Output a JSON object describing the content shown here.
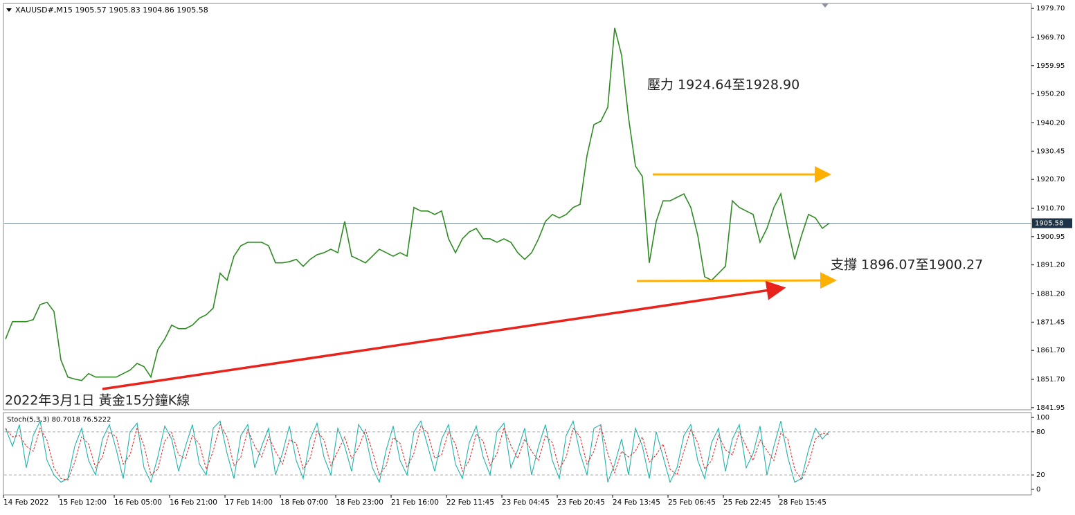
{
  "chart_data": [
    {
      "type": "line",
      "title": "XAUUSD#,M15  1905.57 1905.83 1904.86 1905.58",
      "annotations": [
        "壓力 1924.64至1928.90",
        "支撐 1896.07至1900.27",
        "2022年3月1日 黃金15分鐘K線"
      ],
      "categories": [
        "14 Feb 2022",
        null,
        null,
        null,
        null,
        null,
        null,
        null,
        "15 Feb 12:00",
        null,
        null,
        null,
        null,
        null,
        null,
        null,
        "16 Feb 05:00",
        null,
        null,
        null,
        null,
        null,
        null,
        null,
        "16 Feb 21:00",
        null,
        null,
        null,
        null,
        null,
        null,
        null,
        "17 Feb 14:00",
        null,
        null,
        null,
        null,
        null,
        null,
        null,
        "18 Feb 07:00",
        null,
        null,
        null,
        null,
        null,
        null,
        null,
        "18 Feb 23:00",
        null,
        null,
        null,
        null,
        null,
        null,
        null,
        "21 Feb 16:00",
        null,
        null,
        null,
        null,
        null,
        null,
        null,
        "22 Feb 11:45",
        null,
        null,
        null,
        null,
        null,
        null,
        null,
        "23 Feb 04:45",
        null,
        null,
        null,
        null,
        null,
        null,
        null,
        "23 Feb 20:45",
        null,
        null,
        null,
        null,
        null,
        null,
        null,
        "24 Feb 13:45",
        null,
        null,
        null,
        null,
        null,
        null,
        null,
        "25 Feb 06:45",
        null,
        null,
        null,
        null,
        null,
        null,
        null,
        "25 Feb 22:45",
        null,
        null,
        null,
        null,
        null,
        null,
        null,
        "28 Feb 15:45",
        null,
        null,
        null,
        null,
        null,
        null,
        null
      ],
      "series": [
        {
          "color": "#2e8b22",
          "values": [
            1865.6,
            1871.6,
            1871.6,
            1871.6,
            1872.3,
            1877.5,
            1878.3,
            1875.1,
            1858.4,
            1852.5,
            1851.8,
            1851.3,
            1853.7,
            1852.5,
            1852.5,
            1852.5,
            1852.5,
            1853.7,
            1854.9,
            1857.2,
            1856.1,
            1852.5,
            1862.0,
            1865.6,
            1870.4,
            1869.2,
            1869.2,
            1870.4,
            1872.8,
            1874.0,
            1876.3,
            1888.3,
            1885.9,
            1894.2,
            1897.8,
            1899.0,
            1899.0,
            1899.0,
            1897.8,
            1891.9,
            1891.9,
            1892.3,
            1893.1,
            1890.7,
            1893.1,
            1894.7,
            1895.4,
            1896.6,
            1895.4,
            1906.2,
            1894.2,
            1893.1,
            1891.9,
            1894.2,
            1896.6,
            1895.4,
            1894.2,
            1895.4,
            1894.2,
            1911.0,
            1909.8,
            1909.8,
            1908.6,
            1909.8,
            1900.2,
            1895.4,
            1900.2,
            1902.6,
            1903.8,
            1900.2,
            1900.2,
            1899.0,
            1900.2,
            1899.0,
            1895.4,
            1893.1,
            1895.4,
            1900.2,
            1906.2,
            1908.6,
            1907.4,
            1908.6,
            1911.0,
            1912.1,
            1928.9,
            1939.6,
            1940.8,
            1945.6,
            1973.0,
            1963.5,
            1942.0,
            1925.3,
            1921.7,
            1891.9,
            1906.2,
            1913.3,
            1913.3,
            1914.5,
            1915.7,
            1911.0,
            1901.4,
            1887.1,
            1885.9,
            1888.3,
            1890.7,
            1913.3,
            1911.0,
            1909.8,
            1908.6,
            1899.0,
            1903.8,
            1911.0,
            1915.7,
            1903.8,
            1893.1,
            1901.4,
            1908.6,
            1907.4,
            1903.8,
            1905.6
          ]
        }
      ],
      "last_price": 1905.58,
      "ylim": [
        1841.2,
        1981.4
      ],
      "yticks": [
        {
          "value": 1979.7,
          "label": "1979.70"
        },
        {
          "value": 1969.7,
          "label": "1969.70"
        },
        1959.95,
        {
          "value": 1950.2,
          "label": "1950.20"
        },
        {
          "value": 1940.2,
          "label": "1940.20"
        },
        1930.45,
        {
          "value": 1920.7,
          "label": "1920.70"
        },
        {
          "value": 1910.7,
          "label": "1910.70"
        },
        1900.95,
        {
          "value": 1891.2,
          "label": "1891.20"
        },
        {
          "value": 1881.2,
          "label": "1881.20"
        },
        1871.45,
        {
          "value": 1861.7,
          "label": "1861.70"
        },
        {
          "value": 1851.7,
          "label": "1851.70"
        },
        1841.95
      ]
    },
    {
      "type": "line",
      "title": "Stoch(5,3,3) 80.7018 76.5222",
      "series": [
        {
          "color": "#20b2aa",
          "dashed": false,
          "values": [
            85,
            60,
            90,
            30,
            75,
            95,
            40,
            20,
            10,
            15,
            60,
            85,
            40,
            20,
            70,
            90,
            55,
            15,
            80,
            92,
            30,
            10,
            45,
            88,
            70,
            25,
            60,
            90,
            35,
            20,
            85,
            95,
            50,
            15,
            75,
            90,
            30,
            60,
            85,
            20,
            50,
            88,
            40,
            15,
            70,
            92,
            45,
            20,
            85,
            60,
            25,
            90,
            75,
            30,
            10,
            55,
            88,
            40,
            20,
            80,
            95,
            60,
            25,
            70,
            90,
            35,
            15,
            65,
            88,
            45,
            20,
            80,
            92,
            30,
            55,
            85,
            20,
            60,
            90,
            40,
            15,
            75,
            95,
            50,
            20,
            85,
            90,
            10,
            35,
            70,
            20,
            85,
            60,
            15,
            80,
            45,
            10,
            30,
            75,
            90,
            40,
            15,
            65,
            85,
            25,
            70,
            90,
            30,
            50,
            88,
            20,
            60,
            95,
            45,
            10,
            15,
            55,
            85,
            70,
            80.7
          ]
        },
        {
          "color": "#e03030",
          "dashed": true,
          "values": [
            85,
            73,
            75,
            60,
            53,
            85,
            68,
            30,
            15,
            13,
            38,
            73,
            63,
            30,
            45,
            80,
            73,
            35,
            48,
            86,
            61,
            20,
            28,
            67,
            79,
            48,
            43,
            75,
            63,
            28,
            53,
            90,
            73,
            33,
            45,
            83,
            60,
            45,
            73,
            53,
            35,
            69,
            64,
            28,
            43,
            81,
            69,
            33,
            53,
            73,
            43,
            58,
            83,
            53,
            20,
            33,
            72,
            64,
            30,
            50,
            88,
            78,
            43,
            48,
            80,
            63,
            25,
            40,
            77,
            67,
            33,
            50,
            86,
            61,
            43,
            70,
            53,
            40,
            75,
            65,
            28,
            45,
            85,
            73,
            35,
            53,
            88,
            50,
            23,
            53,
            45,
            53,
            73,
            38,
            48,
            63,
            28,
            20,
            53,
            83,
            65,
            28,
            40,
            75,
            55,
            48,
            80,
            60,
            40,
            69,
            54,
            40,
            78,
            70,
            28,
            13,
            35,
            70,
            78,
            76.5
          ]
        }
      ],
      "ylim": [
        -7.8,
        106.8
      ],
      "yticks": [
        0,
        20,
        80,
        100
      ],
      "levels": [
        20,
        80
      ]
    }
  ]
}
